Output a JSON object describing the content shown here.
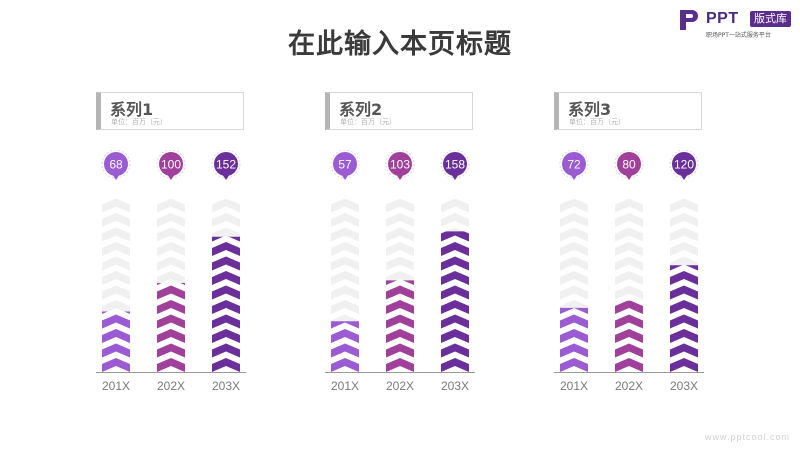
{
  "title": "在此输入本页标题",
  "logo": {
    "word": "PPT",
    "badge": "版式库",
    "tagline": "职场PPT一站式服务平台"
  },
  "footer": "www.pptcool.com",
  "chart_data": [
    {
      "type": "bar",
      "title": "系列1",
      "subtitle": "单位：百万（元）",
      "categories": [
        "201X",
        "202X",
        "203X"
      ],
      "values": [
        68,
        100,
        152
      ],
      "ylim": [
        0,
        200
      ],
      "colors": [
        "#9a5bd3",
        "#a0409a",
        "#6a2f9a"
      ],
      "grid": false
    },
    {
      "type": "bar",
      "title": "系列2",
      "subtitle": "单位：百万（元）",
      "categories": [
        "201X",
        "202X",
        "203X"
      ],
      "values": [
        57,
        103,
        158
      ],
      "ylim": [
        0,
        200
      ],
      "colors": [
        "#9a5bd3",
        "#a0409a",
        "#6a2f9a"
      ],
      "grid": false
    },
    {
      "type": "bar",
      "title": "系列3",
      "subtitle": "单位：百万（元）",
      "categories": [
        "201X",
        "202X",
        "203X"
      ],
      "values": [
        72,
        80,
        120
      ],
      "ylim": [
        0,
        200
      ],
      "colors": [
        "#9a5bd3",
        "#a0409a",
        "#6a2f9a"
      ],
      "grid": false
    }
  ]
}
